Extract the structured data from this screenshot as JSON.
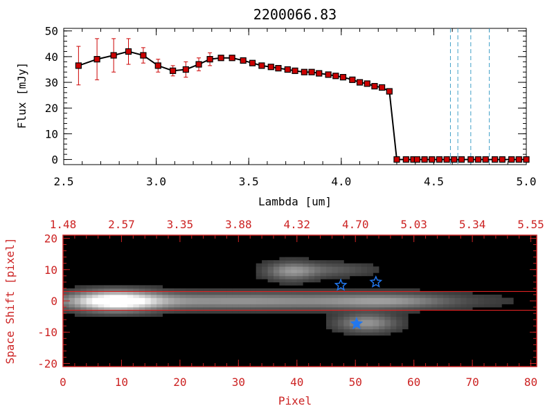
{
  "chart_data": [
    {
      "type": "line",
      "title": "2200066.83",
      "xlabel": "Lambda [um]",
      "ylabel": "Flux [mJy]",
      "xlim": [
        2.5,
        5.0
      ],
      "ylim": [
        -2,
        51
      ],
      "x_ticks": [
        2.5,
        3.0,
        3.5,
        4.0,
        4.5,
        5.0
      ],
      "x_tick_labels": [
        "2.5",
        "3.0",
        "3.5",
        "4.0",
        "4.5",
        "5.0"
      ],
      "y_ticks": [
        0,
        10,
        20,
        30,
        40,
        50
      ],
      "y_tick_labels": [
        "0",
        "10",
        "20",
        "30",
        "40",
        "50"
      ],
      "series": [
        {
          "name": "flux",
          "color": "#000000",
          "marker_color": "#cc0000",
          "x": [
            2.58,
            2.68,
            2.77,
            2.85,
            2.93,
            3.01,
            3.09,
            3.16,
            3.23,
            3.29,
            3.35,
            3.41,
            3.47,
            3.52,
            3.57,
            3.62,
            3.66,
            3.71,
            3.75,
            3.8,
            3.84,
            3.88,
            3.93,
            3.97,
            4.01,
            4.06,
            4.1,
            4.14,
            4.18,
            4.22,
            4.26,
            4.3,
            4.35,
            4.39,
            4.41,
            4.45,
            4.49,
            4.53,
            4.57,
            4.61,
            4.65,
            4.7,
            4.74,
            4.78,
            4.83,
            4.87,
            4.92,
            4.96,
            5.0
          ],
          "y": [
            36.5,
            39,
            40.5,
            42,
            40.5,
            36.5,
            34.5,
            35,
            37,
            39,
            39.5,
            39.5,
            38.5,
            37.5,
            36.5,
            36,
            35.5,
            35,
            34.5,
            34,
            34,
            33.5,
            33,
            32.5,
            32,
            31,
            30,
            29.5,
            28.5,
            28,
            26.5,
            0,
            0,
            0,
            0,
            0,
            0,
            0,
            0,
            0,
            0,
            0,
            0,
            0,
            0,
            0,
            0,
            0,
            0
          ],
          "yerr": [
            7.5,
            8,
            6.5,
            5,
            3,
            2.5,
            2,
            3,
            2.5,
            2.5,
            1,
            0.5,
            0.5,
            0.5,
            0.5,
            0.5,
            0.5,
            0.5,
            0.5,
            0.5,
            0.5,
            0.5,
            0.5,
            0.5,
            0.5,
            0.5,
            0.5,
            0.5,
            0.5,
            0.5,
            0.5,
            0,
            0,
            0,
            0,
            0,
            0,
            0,
            0,
            0,
            0,
            0,
            0,
            0,
            0,
            0,
            0,
            0,
            0
          ]
        }
      ],
      "vertical_lines": [
        4.59,
        4.63,
        4.7,
        4.8
      ],
      "vertical_line_color": "#3fa0c8"
    },
    {
      "type": "heatmap",
      "xlabel": "Pixel",
      "ylabel": "Space Shift [pixel]",
      "xlim": [
        0,
        81
      ],
      "ylim": [
        -21,
        21
      ],
      "x_ticks": [
        0,
        10,
        20,
        30,
        40,
        50,
        60,
        70,
        80
      ],
      "x_tick_labels": [
        "0",
        "10",
        "20",
        "30",
        "40",
        "50",
        "60",
        "70",
        "80"
      ],
      "y_ticks": [
        -20,
        -10,
        0,
        10,
        20
      ],
      "y_tick_labels": [
        "-20",
        "-10",
        "0",
        "10",
        "20"
      ],
      "top_axis_ticks": [
        0,
        10,
        20,
        30,
        40,
        50,
        60,
        70,
        80
      ],
      "top_axis_labels": [
        "1.48",
        "2.57",
        "3.35",
        "3.88",
        "4.32",
        "4.70",
        "5.03",
        "5.34",
        "5.55"
      ],
      "aperture_lines": [
        3,
        -3
      ],
      "axis_color": "#cc2222",
      "blobs": [
        {
          "name": "main-trace",
          "cx": 9,
          "cy": 0,
          "sx": 5,
          "sy": 2.2,
          "amp": 1.0
        },
        {
          "name": "trace-body",
          "cx": 30,
          "cy": 0,
          "sx": 22,
          "sy": 1.8,
          "amp": 0.5
        },
        {
          "name": "trace-tail",
          "cx": 56,
          "cy": 0,
          "sx": 7,
          "sy": 1.6,
          "amp": 0.3
        },
        {
          "name": "upper-source",
          "cx": 39,
          "cy": 9.5,
          "sx": 3,
          "sy": 2,
          "amp": 0.45
        },
        {
          "name": "upper-source-tail",
          "cx": 46,
          "cy": 10,
          "sx": 5,
          "sy": 1.5,
          "amp": 0.22
        },
        {
          "name": "lower-source",
          "cx": 52,
          "cy": -7,
          "sx": 3.5,
          "sy": 2,
          "amp": 0.5
        }
      ],
      "stars": [
        {
          "x": 47.5,
          "y": 5,
          "filled": false
        },
        {
          "x": 53.5,
          "y": 6,
          "filled": false
        },
        {
          "x": 50.2,
          "y": -7.3,
          "filled": true
        }
      ],
      "star_color": "#2277ee"
    }
  ]
}
